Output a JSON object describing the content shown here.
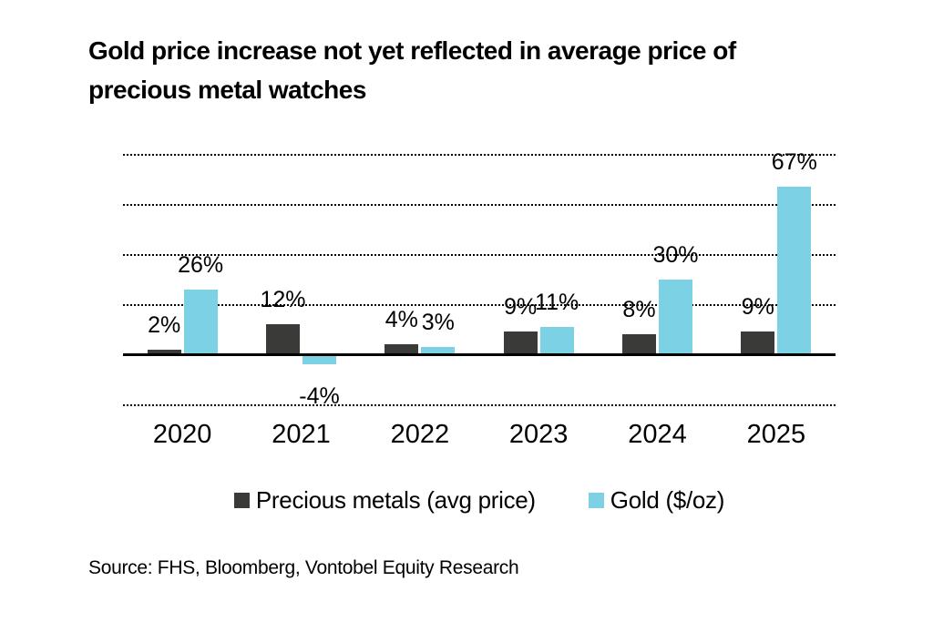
{
  "title": "Gold price increase not yet reflected in average price of\nprecious metal watches",
  "source": "Source: FHS, Bloomberg, Vontobel Equity Research",
  "colors": {
    "background": "#ffffff",
    "text": "#000000",
    "axis": "#000000",
    "gridline": "#000000",
    "precious_metals_bar": "#3a3b38",
    "gold_bar": "#7cd2e4"
  },
  "chart_data": {
    "type": "bar",
    "title": "Gold price increase not yet reflected in average price of precious metal watches",
    "categories": [
      "2020",
      "2021",
      "2022",
      "2023",
      "2024",
      "2025"
    ],
    "series": [
      {
        "name": "Precious metals (avg price)",
        "color": "#3a3b38",
        "values": [
          2,
          12,
          4,
          9,
          8,
          9
        ]
      },
      {
        "name": "Gold ($/oz)",
        "color": "#7cd2e4",
        "values": [
          26,
          -4,
          3,
          11,
          30,
          67
        ]
      }
    ],
    "value_suffix": "%",
    "data_labels": true,
    "ylim": [
      -26,
      83
    ],
    "gridline_values": [
      80,
      60,
      40,
      20,
      -20
    ],
    "grid_style": "dotted",
    "zero_axis": true,
    "legend_position": "bottom",
    "source": "Source: FHS, Bloomberg, Vontobel Equity Research"
  }
}
